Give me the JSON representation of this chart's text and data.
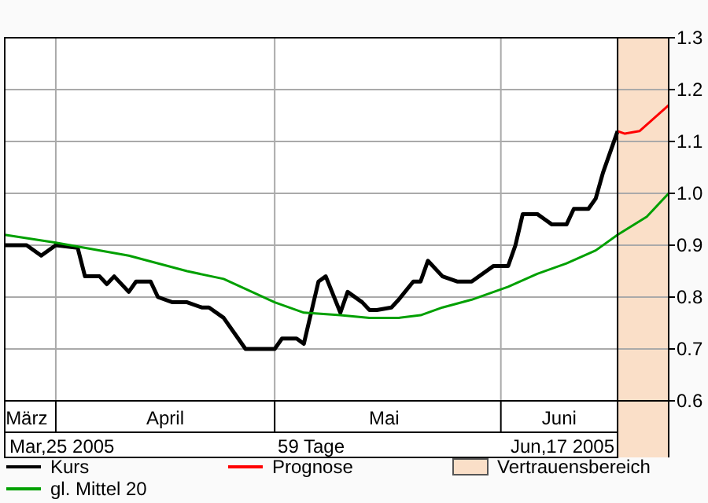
{
  "chart_data": {
    "type": "line",
    "xlim": [
      "2005-03-25",
      "2005-06-24"
    ],
    "xticks": [
      {
        "value": "2005-03-28",
        "label": "März"
      },
      {
        "value": "2005-04-16",
        "label": "April"
      },
      {
        "value": "2005-05-16",
        "label": "Mai"
      },
      {
        "value": "2005-06-09",
        "label": "Juni"
      }
    ],
    "ylim": [
      0.6,
      1.3
    ],
    "yticks": [
      0.6,
      0.7,
      0.8,
      0.9,
      {
        "value": 1,
        "label": "1.0"
      },
      1.1,
      1.2,
      1.3
    ],
    "grid": true,
    "legend": "bottom",
    "series": [
      {
        "name": "Kurs",
        "color": "#000000",
        "x": [
          "2005-03-25",
          "2005-03-28",
          "2005-03-30",
          "2005-04-01",
          "2005-04-04",
          "2005-04-05",
          "2005-04-07",
          "2005-04-08",
          "2005-04-09",
          "2005-04-11",
          "2005-04-12",
          "2005-04-14",
          "2005-04-15",
          "2005-04-17",
          "2005-04-19",
          "2005-04-21",
          "2005-04-22",
          "2005-04-24",
          "2005-04-26",
          "2005-04-27",
          "2005-05-01",
          "2005-05-02",
          "2005-05-04",
          "2005-05-05",
          "2005-05-07",
          "2005-05-08",
          "2005-05-10",
          "2005-05-11",
          "2005-05-13",
          "2005-05-14",
          "2005-05-15",
          "2005-05-17",
          "2005-05-18",
          "2005-05-20",
          "2005-05-21",
          "2005-05-22",
          "2005-05-24",
          "2005-05-26",
          "2005-05-28",
          "2005-05-30",
          "2005-05-31",
          "2005-06-02",
          "2005-06-03",
          "2005-06-04",
          "2005-06-06",
          "2005-06-07",
          "2005-06-08",
          "2005-06-10",
          "2005-06-11",
          "2005-06-13",
          "2005-06-14",
          "2005-06-15",
          "2005-06-17"
        ],
        "values": [
          0.9,
          0.9,
          0.88,
          0.9,
          0.895,
          0.84,
          0.84,
          0.825,
          0.84,
          0.81,
          0.83,
          0.83,
          0.8,
          0.79,
          0.79,
          0.78,
          0.78,
          0.76,
          0.72,
          0.7,
          0.7,
          0.72,
          0.72,
          0.71,
          0.83,
          0.84,
          0.77,
          0.81,
          0.79,
          0.775,
          0.775,
          0.78,
          0.795,
          0.83,
          0.83,
          0.87,
          0.84,
          0.83,
          0.83,
          0.85,
          0.86,
          0.86,
          0.9,
          0.96,
          0.96,
          0.95,
          0.94,
          0.94,
          0.97,
          0.97,
          0.99,
          1.04,
          1.12
        ]
      },
      {
        "name": "gl. Mittel 20",
        "color": "#00a000",
        "x": [
          "2005-03-25",
          "2005-04-01",
          "2005-04-11",
          "2005-04-19",
          "2005-04-24",
          "2005-05-01",
          "2005-05-05",
          "2005-05-10",
          "2005-05-14",
          "2005-05-18",
          "2005-05-21",
          "2005-05-24",
          "2005-05-28",
          "2005-06-02",
          "2005-06-06",
          "2005-06-10",
          "2005-06-14",
          "2005-06-17",
          "2005-06-21",
          "2005-06-24"
        ],
        "values": [
          0.92,
          0.905,
          0.88,
          0.85,
          0.835,
          0.79,
          0.77,
          0.765,
          0.76,
          0.76,
          0.765,
          0.78,
          0.795,
          0.82,
          0.845,
          0.865,
          0.89,
          0.92,
          0.955,
          1.0
        ]
      },
      {
        "name": "Prognose",
        "color": "#ff0000",
        "x": [
          "2005-06-17",
          "2005-06-18",
          "2005-06-20",
          "2005-06-22",
          "2005-06-24"
        ],
        "values": [
          1.12,
          1.115,
          1.12,
          1.145,
          1.17
        ]
      }
    ],
    "ref_lines": [
      {
        "axis": "x",
        "value": "2005-06-17",
        "color": "#000000"
      }
    ],
    "bands": [
      {
        "axis": "x",
        "from": "2005-06-17",
        "to": "2005-06-24",
        "label": "Vertrauensbereich",
        "color": "#fadfc8"
      }
    ],
    "annotations": [
      "Mar,25 2005",
      "59 Tage",
      "Jun,17 2005"
    ]
  }
}
